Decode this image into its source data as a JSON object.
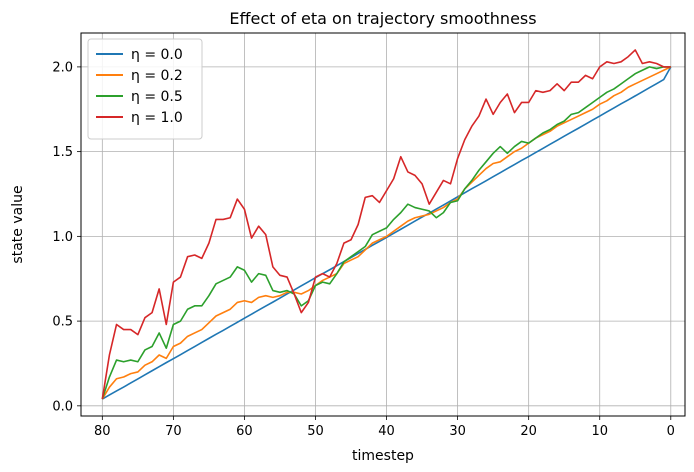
{
  "chart_data": {
    "type": "line",
    "title": "Effect of eta on trajectory smoothness",
    "xlabel": "timestep",
    "ylabel": "state value",
    "xlim": [
      83,
      -2
    ],
    "ylim": [
      -0.06,
      2.2
    ],
    "xticks": [
      80,
      70,
      60,
      50,
      40,
      30,
      20,
      10,
      0
    ],
    "yticks": [
      0.0,
      0.5,
      1.0,
      1.5,
      2.0
    ],
    "grid": true,
    "legend_position": "top-left",
    "x": [
      80,
      79,
      78,
      77,
      76,
      75,
      74,
      73,
      72,
      71,
      70,
      69,
      68,
      67,
      66,
      65,
      64,
      63,
      62,
      61,
      60,
      59,
      58,
      57,
      56,
      55,
      54,
      53,
      52,
      51,
      50,
      49,
      48,
      47,
      46,
      45,
      44,
      43,
      42,
      41,
      40,
      39,
      38,
      37,
      36,
      35,
      34,
      33,
      32,
      31,
      30,
      29,
      28,
      27,
      26,
      25,
      24,
      23,
      22,
      21,
      20,
      19,
      18,
      17,
      16,
      15,
      14,
      13,
      12,
      11,
      10,
      9,
      8,
      7,
      6,
      5,
      4,
      3,
      2,
      1,
      0
    ],
    "series": [
      {
        "name": "η = 0.0",
        "color": "#1f77b4",
        "values": [
          0.04,
          0.064,
          0.088,
          0.111,
          0.135,
          0.159,
          0.183,
          0.207,
          0.231,
          0.255,
          0.278,
          0.302,
          0.326,
          0.35,
          0.374,
          0.398,
          0.422,
          0.445,
          0.469,
          0.493,
          0.517,
          0.541,
          0.565,
          0.589,
          0.612,
          0.636,
          0.66,
          0.684,
          0.708,
          0.732,
          0.756,
          0.78,
          0.803,
          0.827,
          0.851,
          0.875,
          0.899,
          0.923,
          0.947,
          0.97,
          0.994,
          1.018,
          1.042,
          1.066,
          1.09,
          1.114,
          1.137,
          1.161,
          1.185,
          1.209,
          1.233,
          1.257,
          1.281,
          1.304,
          1.328,
          1.352,
          1.376,
          1.4,
          1.424,
          1.448,
          1.471,
          1.495,
          1.519,
          1.543,
          1.567,
          1.591,
          1.615,
          1.638,
          1.662,
          1.686,
          1.71,
          1.734,
          1.758,
          1.782,
          1.805,
          1.829,
          1.853,
          1.877,
          1.901,
          1.925,
          2.0
        ]
      },
      {
        "name": "η = 0.2",
        "color": "#ff7f0e",
        "values": [
          0.04,
          0.11,
          0.16,
          0.17,
          0.19,
          0.2,
          0.24,
          0.26,
          0.3,
          0.28,
          0.35,
          0.37,
          0.41,
          0.43,
          0.45,
          0.49,
          0.53,
          0.55,
          0.57,
          0.61,
          0.62,
          0.61,
          0.64,
          0.65,
          0.64,
          0.65,
          0.67,
          0.67,
          0.66,
          0.68,
          0.71,
          0.74,
          0.76,
          0.78,
          0.84,
          0.86,
          0.88,
          0.92,
          0.96,
          0.98,
          1.0,
          1.03,
          1.06,
          1.09,
          1.11,
          1.12,
          1.13,
          1.15,
          1.17,
          1.2,
          1.22,
          1.28,
          1.32,
          1.36,
          1.4,
          1.43,
          1.44,
          1.47,
          1.5,
          1.52,
          1.55,
          1.58,
          1.6,
          1.62,
          1.65,
          1.67,
          1.69,
          1.71,
          1.73,
          1.75,
          1.78,
          1.8,
          1.83,
          1.85,
          1.88,
          1.9,
          1.92,
          1.94,
          1.96,
          1.98,
          2.0
        ]
      },
      {
        "name": "η = 0.5",
        "color": "#2ca02c",
        "values": [
          0.04,
          0.17,
          0.27,
          0.26,
          0.27,
          0.26,
          0.33,
          0.35,
          0.43,
          0.34,
          0.48,
          0.5,
          0.57,
          0.59,
          0.59,
          0.65,
          0.72,
          0.74,
          0.76,
          0.82,
          0.8,
          0.73,
          0.78,
          0.77,
          0.68,
          0.67,
          0.68,
          0.66,
          0.59,
          0.62,
          0.71,
          0.73,
          0.72,
          0.78,
          0.85,
          0.88,
          0.91,
          0.94,
          1.01,
          1.03,
          1.05,
          1.1,
          1.14,
          1.19,
          1.17,
          1.16,
          1.15,
          1.11,
          1.14,
          1.2,
          1.21,
          1.28,
          1.33,
          1.39,
          1.44,
          1.49,
          1.53,
          1.49,
          1.53,
          1.56,
          1.55,
          1.58,
          1.61,
          1.63,
          1.66,
          1.68,
          1.72,
          1.73,
          1.76,
          1.79,
          1.82,
          1.85,
          1.87,
          1.9,
          1.93,
          1.96,
          1.98,
          2.0,
          1.99,
          2.0,
          2.0
        ]
      },
      {
        "name": "η = 1.0",
        "color": "#d62728",
        "values": [
          0.04,
          0.3,
          0.48,
          0.45,
          0.45,
          0.42,
          0.52,
          0.55,
          0.69,
          0.48,
          0.73,
          0.76,
          0.88,
          0.89,
          0.87,
          0.96,
          1.1,
          1.1,
          1.11,
          1.22,
          1.16,
          0.99,
          1.06,
          1.01,
          0.82,
          0.77,
          0.76,
          0.66,
          0.55,
          0.61,
          0.76,
          0.78,
          0.76,
          0.84,
          0.96,
          0.98,
          1.07,
          1.23,
          1.24,
          1.2,
          1.27,
          1.34,
          1.47,
          1.38,
          1.36,
          1.31,
          1.19,
          1.26,
          1.33,
          1.31,
          1.46,
          1.57,
          1.65,
          1.71,
          1.81,
          1.72,
          1.79,
          1.84,
          1.73,
          1.79,
          1.79,
          1.86,
          1.85,
          1.86,
          1.9,
          1.86,
          1.91,
          1.91,
          1.95,
          1.93,
          2.0,
          2.03,
          2.02,
          2.03,
          2.06,
          2.1,
          2.02,
          2.03,
          2.02,
          2.0,
          2.0
        ]
      }
    ]
  }
}
